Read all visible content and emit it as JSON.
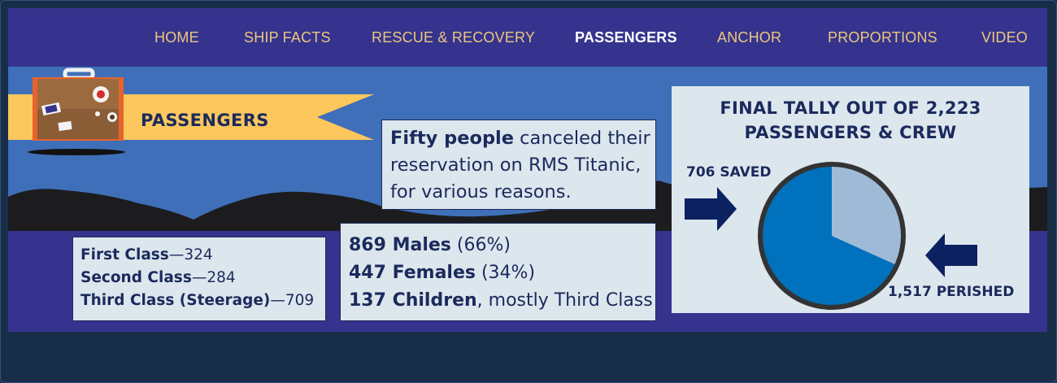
{
  "nav": {
    "items": [
      {
        "label": "HOME",
        "active": false
      },
      {
        "label": "SHIP FACTS",
        "active": false
      },
      {
        "label": "RESCUE & RECOVERY",
        "active": false
      },
      {
        "label": "PASSENGERS",
        "active": true
      },
      {
        "label": "ANCHOR",
        "active": false
      },
      {
        "label": "PROPORTIONS",
        "active": false
      },
      {
        "label": "VIDEO",
        "active": false
      }
    ]
  },
  "banner": {
    "title": "PASSENGERS",
    "icon": "suitcase-icon"
  },
  "classes": [
    {
      "name": "First Class",
      "value": "—324"
    },
    {
      "name": "Second Class",
      "value": "—284"
    },
    {
      "name": "Third Class (Steerage)",
      "value": "—709"
    }
  ],
  "demographics": [
    {
      "bold": "869 Males",
      "rest": " (66%)"
    },
    {
      "bold": "447 Females",
      "rest": " (34%)"
    },
    {
      "bold": "137 Children",
      "rest": ", mostly Third Class"
    }
  ],
  "fifty": {
    "bold": "Fifty people",
    "line1_rest": " canceled their",
    "line2": "reservation on RMS Titanic,",
    "line3": "for various reasons."
  },
  "tally": {
    "title_line1": "FINAL TALLY OUT OF 2,223",
    "title_line2": "PASSENGERS & CREW",
    "saved_label": "706 SAVED",
    "perished_label": "1,517 PERISHED"
  },
  "colors": {
    "nav_bg": "#35338e",
    "nav_text": "#ecc77e",
    "sky": "#3f6fb8",
    "panel_bg": "#dce6ed",
    "text_navy": "#1b2a5c",
    "banner_yellow": "#fcc75c",
    "pie_saved": "#9fbad6",
    "pie_perished": "#0071bc",
    "arrow": "#0c2160"
  },
  "chart_data": {
    "type": "pie",
    "title": "FINAL TALLY OUT OF 2,223 PASSENGERS & CREW",
    "categories": [
      "706 SAVED",
      "1,517 PERISHED"
    ],
    "values": [
      706,
      1517
    ]
  }
}
